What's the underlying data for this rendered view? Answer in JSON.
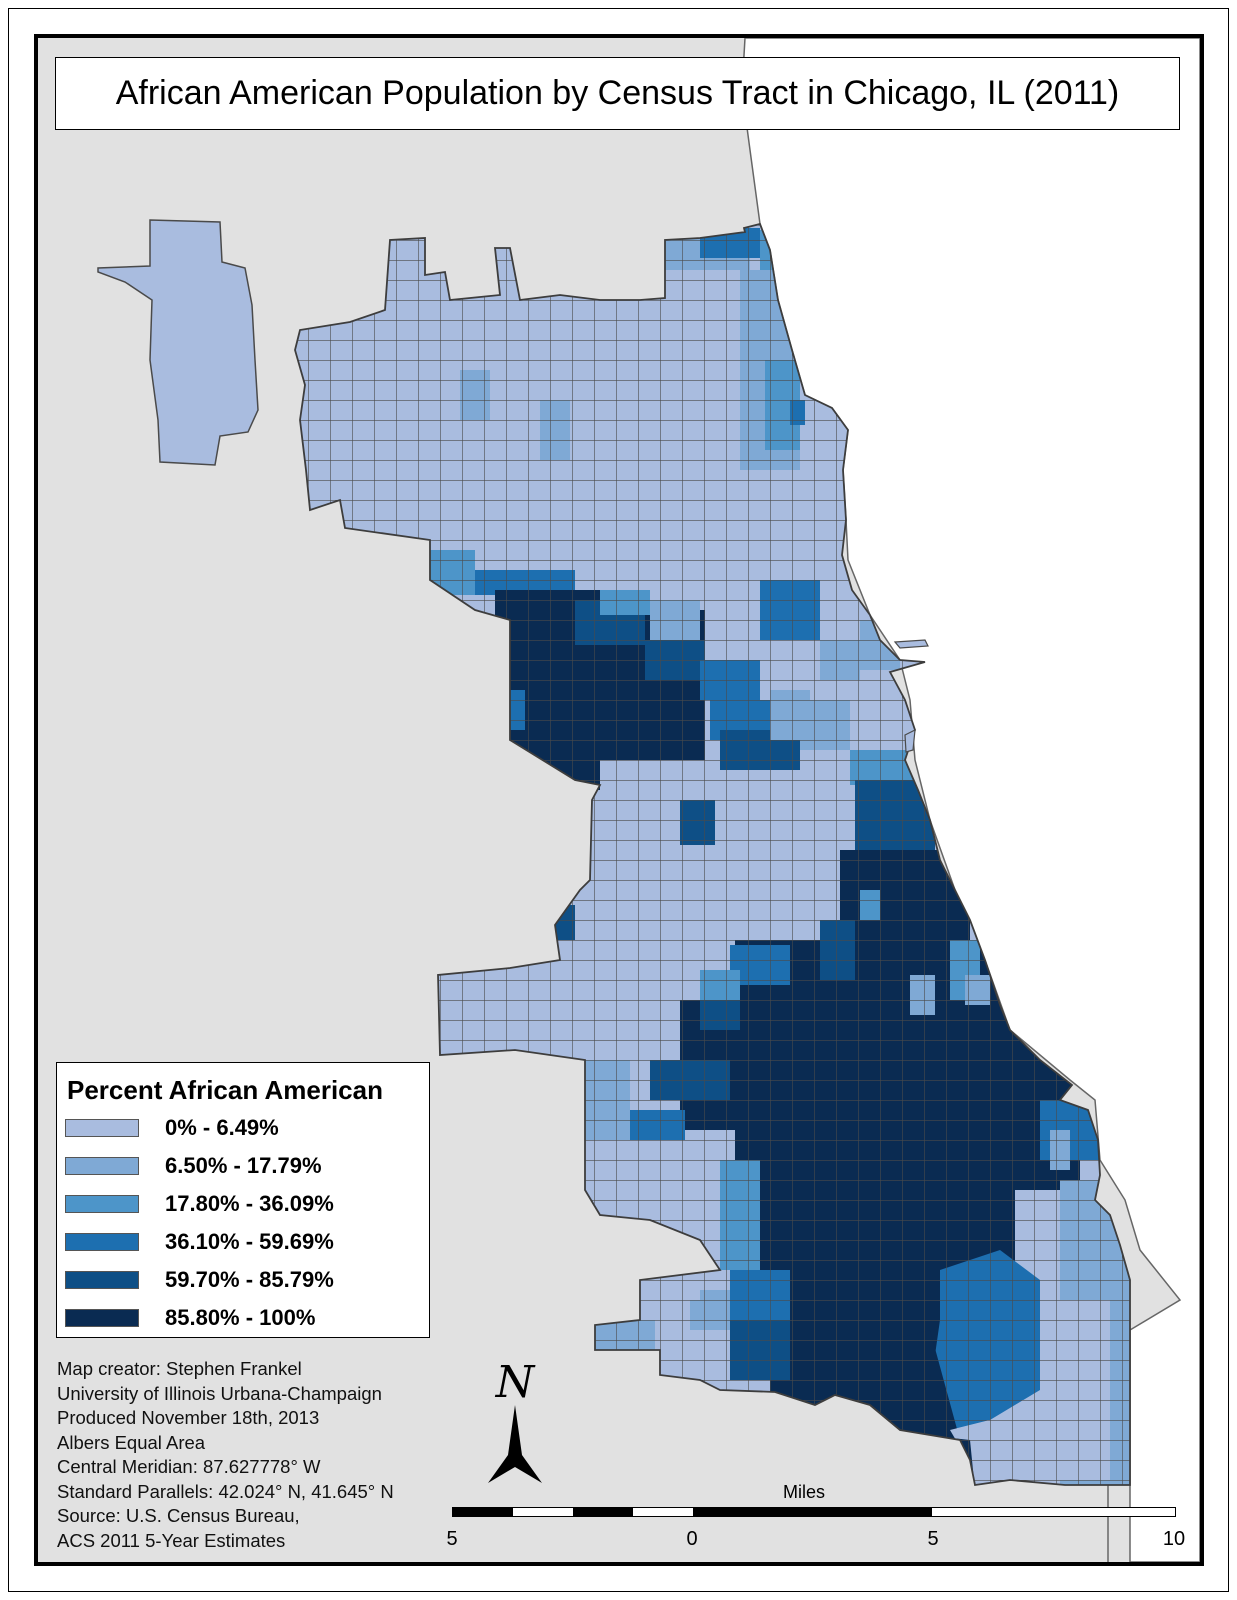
{
  "title": "African American Population by Census Tract in Chicago, IL (2011)",
  "legend": {
    "title": "Percent African American",
    "classes": [
      {
        "label": "0% - 6.49%",
        "color": "#a9bcdf"
      },
      {
        "label": "6.50% - 17.79%",
        "color": "#7fa9d5"
      },
      {
        "label": "17.80% - 36.09%",
        "color": "#4d95c9"
      },
      {
        "label": "36.10% - 59.69%",
        "color": "#1d6fb0"
      },
      {
        "label": "59.70% - 85.79%",
        "color": "#0e4f86"
      },
      {
        "label": "85.80% - 100%",
        "color": "#0a2b52"
      }
    ]
  },
  "credits": [
    "Map creator: Stephen Frankel",
    "University of Illinois Urbana-Champaign",
    "Produced November 18th, 2013",
    "Albers Equal Area",
    "Central Meridian: 87.627778° W",
    "Standard Parallels: 42.024° N, 41.645° N",
    "Source: U.S. Census Bureau,",
    "ACS 2011 5-Year Estimates"
  ],
  "north_label": "N",
  "scale": {
    "unit": "Miles",
    "ticks": [
      "5",
      "0",
      "5",
      "10"
    ]
  },
  "colors": {
    "background": "#e1e1e1",
    "lake": "#ffffff",
    "tract_border": "#4a4a4a"
  }
}
